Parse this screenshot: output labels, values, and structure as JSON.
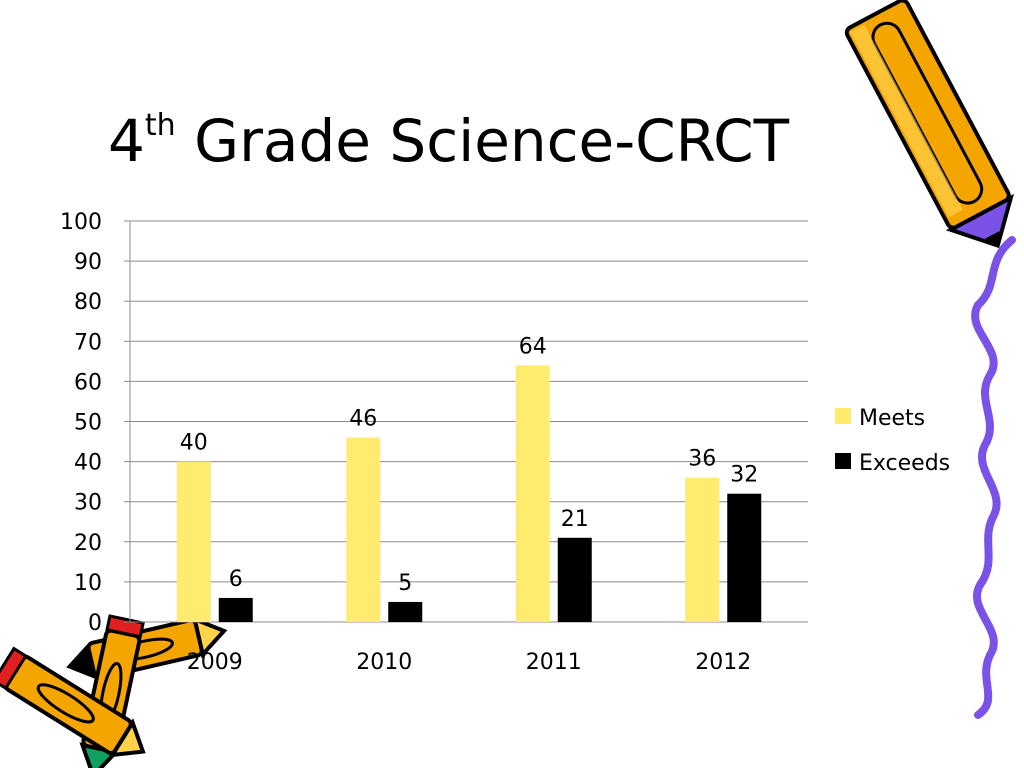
{
  "slide": {
    "title_main": "4",
    "title_sup": "th",
    "title_rest": " Grade Science-CRCT"
  },
  "chart_data": {
    "type": "bar",
    "title": "",
    "xlabel": "",
    "ylabel": "",
    "categories": [
      "2009",
      "2010",
      "2011",
      "2012"
    ],
    "series": [
      {
        "name": "Meets",
        "values": [
          40,
          46,
          64,
          36
        ],
        "color": "#FFEB6E"
      },
      {
        "name": "Exceeds",
        "values": [
          6,
          5,
          21,
          32
        ],
        "color": "#000000"
      }
    ],
    "ylim": [
      0,
      100
    ],
    "yticks": [
      0,
      10,
      20,
      30,
      40,
      50,
      60,
      70,
      80,
      90,
      100
    ],
    "grid": true,
    "data_labels": true,
    "legend": "right"
  },
  "decorations": {
    "pencil_colors": [
      "#F5A500",
      "#7B52E8",
      "#E02020",
      "#10A060"
    ],
    "squiggle_color": "#7B52E8"
  }
}
